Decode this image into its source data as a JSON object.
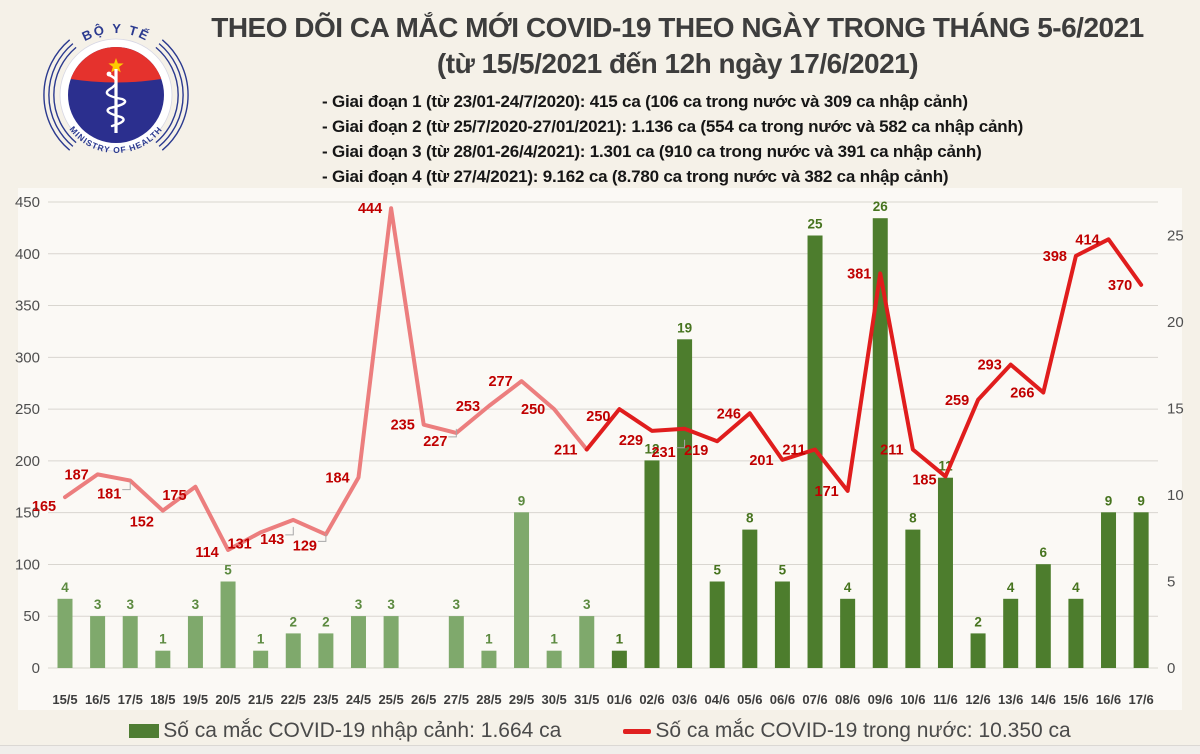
{
  "header": {
    "logo": {
      "top_text": "BỘ Y TẾ",
      "bottom_text": "MINISTRY OF HEALTH"
    },
    "title_line1": "THEO DÕI CA MẮC MỚI COVID-19 THEO NGÀY TRONG THÁNG 5-6/2021",
    "title_line2": "(từ 15/5/2021 đến 12h ngày 17/6/2021)",
    "phases": [
      "- Giai đoạn 1 (từ 23/01-24/7/2020): 415 ca (106 ca trong nước và 309 ca nhập cảnh)",
      "- Giai đoạn 2 (từ 25/7/2020-27/01/2021): 1.136 ca (554 ca trong nước và 582 ca nhập cảnh)",
      "- Giai đoạn 3 (từ 28/01-26/4/2021): 1.301 ca (910 ca trong nước và 391 ca nhập cảnh)",
      "- Giai đoạn 4 (từ 27/4/2021): 9.162 ca (8.780 ca trong nước và 382 ca nhập cảnh)"
    ]
  },
  "chart_data": {
    "type": "bar",
    "subtype": "bar+line combo, dual axis",
    "categories": [
      "15/5",
      "16/5",
      "17/5",
      "18/5",
      "19/5",
      "20/5",
      "21/5",
      "22/5",
      "23/5",
      "24/5",
      "25/5",
      "26/5",
      "27/5",
      "28/5",
      "29/5",
      "30/5",
      "31/5",
      "01/6",
      "02/6",
      "03/6",
      "04/6",
      "05/6",
      "06/6",
      "07/6",
      "08/6",
      "09/6",
      "10/6",
      "11/6",
      "12/6",
      "13/6",
      "14/6",
      "15/6",
      "16/6",
      "17/6"
    ],
    "series": [
      {
        "name": "Số ca mắc COVID-19 nhập cảnh",
        "type": "bar",
        "axis": "right",
        "values": [
          4,
          3,
          3,
          1,
          3,
          5,
          1,
          2,
          2,
          3,
          3,
          0,
          3,
          1,
          9,
          1,
          3,
          1,
          12,
          19,
          5,
          8,
          5,
          25,
          4,
          26,
          8,
          11,
          2,
          4,
          6,
          4,
          9,
          9
        ]
      },
      {
        "name": "Số ca mắc COVID-19 trong nước",
        "type": "line",
        "axis": "left",
        "values": [
          165,
          187,
          181,
          152,
          175,
          114,
          131,
          143,
          129,
          184,
          444,
          235,
          227,
          253,
          277,
          250,
          211,
          250,
          229,
          231,
          219,
          246,
          201,
          211,
          171,
          381,
          211,
          185,
          259,
          293,
          266,
          398,
          414,
          370
        ]
      }
    ],
    "left_axis": {
      "min": 0,
      "max": 450,
      "step": 50,
      "applies_to": "line"
    },
    "right_axis": {
      "min": 0,
      "max": 25,
      "step": 5,
      "applies_to": "bar"
    },
    "grid": true,
    "legend_position": "bottom",
    "june_start_index": 17,
    "line_label_dy": [
      9,
      0,
      13,
      11,
      8,
      2,
      11,
      19,
      11,
      0,
      0,
      0,
      8,
      0,
      0,
      0,
      0,
      7,
      9,
      23,
      9,
      0,
      0,
      0,
      0,
      0,
      0,
      3,
      0,
      0,
      0,
      0,
      0,
      0
    ],
    "line_label_leaders": [
      2,
      7,
      8,
      12,
      19
    ],
    "colors": {
      "bar_may": "#7fa96c",
      "bar_june": "#4d7d2d",
      "bar_label_may": "#5c8a40",
      "bar_label_june": "#47741f",
      "line_may": "#ec7e7e",
      "line_june": "#e01d1d",
      "line_label": "#c00000",
      "gridline": "#d9d6d0",
      "leader": "#a8a8a8"
    }
  },
  "legend": {
    "bar_label": "Số ca mắc COVID-19 nhập cảnh: 1.664 ca",
    "line_label": "Số ca mắc COVID-19 trong nước: 10.350 ca"
  }
}
